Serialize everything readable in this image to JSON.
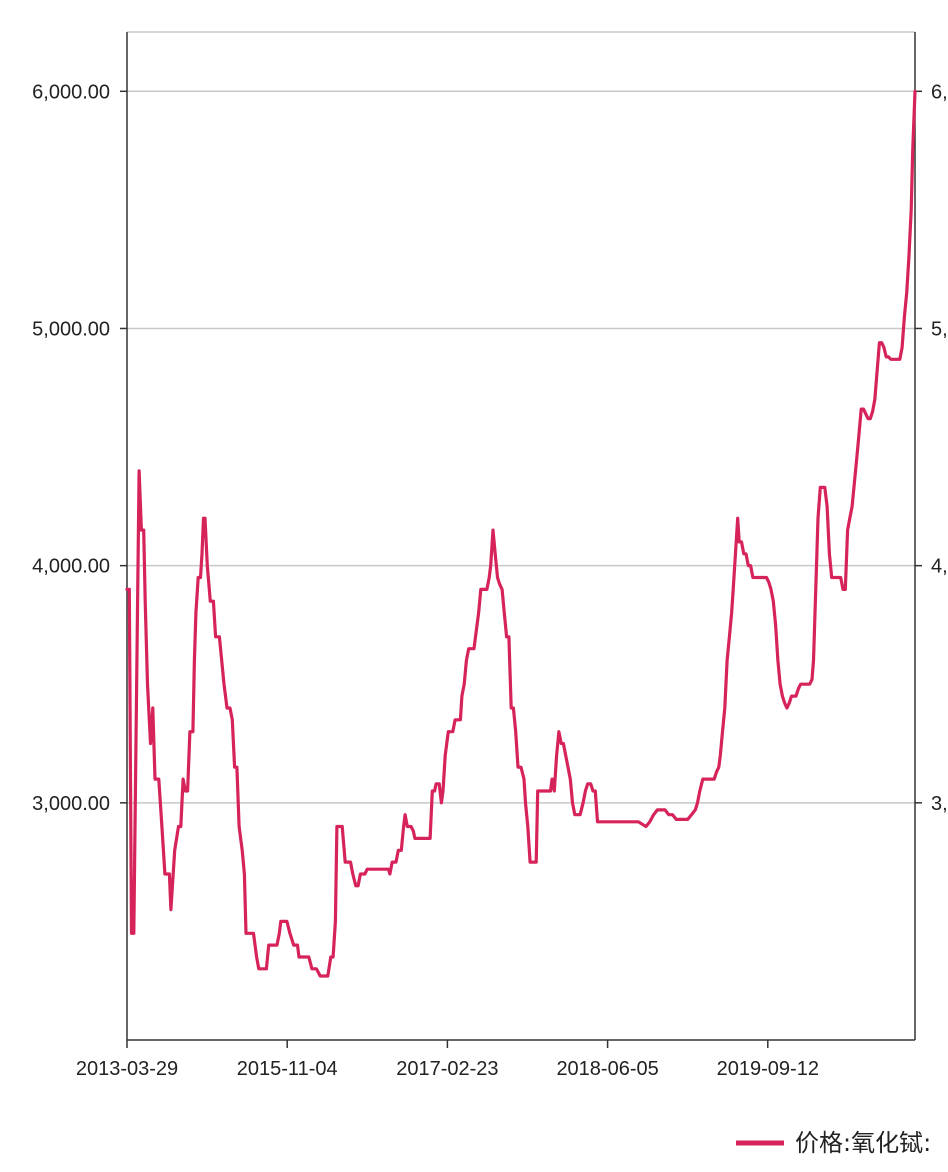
{
  "chart_data": {
    "type": "line",
    "x_ticks": [
      "2013-03-29",
      "2015-11-04",
      "2017-02-23",
      "2018-06-05",
      "2019-09-12"
    ],
    "y_ticks_left": [
      "3,000.00",
      "4,000.00",
      "5,000.00",
      "6,000.00"
    ],
    "y_ticks_right": [
      "3,",
      "4,",
      "5,",
      "6,"
    ],
    "y_tick_values": [
      3000,
      4000,
      5000,
      6000
    ],
    "ylim": [
      2000,
      6250
    ],
    "grid": true,
    "legend_position": "bottom-right",
    "series": [
      {
        "name": "价格:氧化铽:",
        "color": "#d6245a",
        "points": [
          [
            0.0,
            3900
          ],
          [
            0.3,
            3900
          ],
          [
            0.6,
            2450
          ],
          [
            0.9,
            2450
          ],
          [
            1.2,
            3300
          ],
          [
            1.6,
            4400
          ],
          [
            1.9,
            4150
          ],
          [
            2.2,
            4150
          ],
          [
            2.4,
            3850
          ],
          [
            2.7,
            3500
          ],
          [
            3.1,
            3250
          ],
          [
            3.4,
            3400
          ],
          [
            3.7,
            3100
          ],
          [
            4.2,
            3100
          ],
          [
            4.6,
            2900
          ],
          [
            5.0,
            2700
          ],
          [
            5.6,
            2700
          ],
          [
            5.8,
            2550
          ],
          [
            6.3,
            2800
          ],
          [
            6.8,
            2900
          ],
          [
            7.1,
            2900
          ],
          [
            7.4,
            3100
          ],
          [
            7.7,
            3050
          ],
          [
            8.0,
            3050
          ],
          [
            8.3,
            3300
          ],
          [
            8.7,
            3300
          ],
          [
            8.9,
            3600
          ],
          [
            9.1,
            3800
          ],
          [
            9.4,
            3950
          ],
          [
            9.7,
            3950
          ],
          [
            9.9,
            4050
          ],
          [
            10.1,
            4200
          ],
          [
            10.3,
            4200
          ],
          [
            10.6,
            4000
          ],
          [
            11.0,
            3850
          ],
          [
            11.4,
            3850
          ],
          [
            11.7,
            3700
          ],
          [
            12.2,
            3700
          ],
          [
            12.5,
            3600
          ],
          [
            12.8,
            3500
          ],
          [
            13.2,
            3400
          ],
          [
            13.6,
            3400
          ],
          [
            13.9,
            3350
          ],
          [
            14.2,
            3150
          ],
          [
            14.5,
            3150
          ],
          [
            14.8,
            2900
          ],
          [
            15.2,
            2800
          ],
          [
            15.5,
            2700
          ],
          [
            15.7,
            2450
          ],
          [
            16.2,
            2450
          ],
          [
            16.7,
            2450
          ],
          [
            17.1,
            2350
          ],
          [
            17.4,
            2300
          ],
          [
            18.0,
            2300
          ],
          [
            18.4,
            2300
          ],
          [
            18.7,
            2400
          ],
          [
            19.0,
            2400
          ],
          [
            19.4,
            2400
          ],
          [
            19.8,
            2400
          ],
          [
            20.1,
            2450
          ],
          [
            20.3,
            2500
          ],
          [
            21.1,
            2500
          ],
          [
            21.5,
            2450
          ],
          [
            22.0,
            2400
          ],
          [
            22.5,
            2400
          ],
          [
            22.7,
            2350
          ],
          [
            23.5,
            2350
          ],
          [
            24.0,
            2350
          ],
          [
            24.4,
            2300
          ],
          [
            25.0,
            2300
          ],
          [
            25.5,
            2270
          ],
          [
            26.2,
            2270
          ],
          [
            26.5,
            2270
          ],
          [
            26.9,
            2350
          ],
          [
            27.2,
            2350
          ],
          [
            27.5,
            2500
          ],
          [
            27.7,
            2900
          ],
          [
            28.4,
            2900
          ],
          [
            28.8,
            2750
          ],
          [
            29.5,
            2750
          ],
          [
            29.8,
            2700
          ],
          [
            30.2,
            2650
          ],
          [
            30.5,
            2650
          ],
          [
            30.8,
            2700
          ],
          [
            31.4,
            2700
          ],
          [
            31.7,
            2720
          ],
          [
            32.2,
            2720
          ],
          [
            32.7,
            2720
          ],
          [
            33.2,
            2720
          ],
          [
            34.0,
            2720
          ],
          [
            34.3,
            2720
          ],
          [
            34.5,
            2720
          ],
          [
            34.7,
            2700
          ],
          [
            35.0,
            2750
          ],
          [
            35.5,
            2750
          ],
          [
            35.8,
            2800
          ],
          [
            36.2,
            2800
          ],
          [
            36.5,
            2900
          ],
          [
            36.7,
            2950
          ],
          [
            37.0,
            2900
          ],
          [
            37.5,
            2900
          ],
          [
            37.8,
            2880
          ],
          [
            38.0,
            2850
          ],
          [
            38.5,
            2850
          ],
          [
            39.0,
            2850
          ],
          [
            39.5,
            2850
          ],
          [
            40.0,
            2850
          ],
          [
            40.3,
            3050
          ],
          [
            40.6,
            3050
          ],
          [
            40.8,
            3080
          ],
          [
            41.2,
            3080
          ],
          [
            41.5,
            3000
          ],
          [
            41.7,
            3050
          ],
          [
            42.0,
            3200
          ],
          [
            42.4,
            3300
          ],
          [
            42.7,
            3300
          ],
          [
            43.0,
            3300
          ],
          [
            43.3,
            3350
          ],
          [
            44.0,
            3350
          ],
          [
            44.2,
            3450
          ],
          [
            44.5,
            3500
          ],
          [
            44.8,
            3600
          ],
          [
            45.1,
            3650
          ],
          [
            45.8,
            3650
          ],
          [
            46.0,
            3700
          ],
          [
            46.4,
            3800
          ],
          [
            46.7,
            3900
          ],
          [
            47.2,
            3900
          ],
          [
            47.5,
            3900
          ],
          [
            47.8,
            3950
          ],
          [
            48.0,
            4000
          ],
          [
            48.3,
            4150
          ],
          [
            48.6,
            4050
          ],
          [
            48.9,
            3950
          ],
          [
            49.2,
            3920
          ],
          [
            49.5,
            3900
          ],
          [
            49.8,
            3800
          ],
          [
            50.1,
            3700
          ],
          [
            50.4,
            3700
          ],
          [
            50.7,
            3400
          ],
          [
            51.0,
            3400
          ],
          [
            51.3,
            3300
          ],
          [
            51.6,
            3150
          ],
          [
            52.0,
            3150
          ],
          [
            52.4,
            3100
          ],
          [
            52.6,
            3000
          ],
          [
            52.9,
            2900
          ],
          [
            53.2,
            2750
          ],
          [
            53.8,
            2750
          ],
          [
            54.0,
            2750
          ],
          [
            54.2,
            3050
          ],
          [
            54.5,
            3050
          ],
          [
            54.8,
            3050
          ],
          [
            55.3,
            3050
          ],
          [
            55.6,
            3050
          ],
          [
            55.9,
            3050
          ],
          [
            56.1,
            3100
          ],
          [
            56.4,
            3050
          ],
          [
            56.7,
            3200
          ],
          [
            57.0,
            3300
          ],
          [
            57.3,
            3250
          ],
          [
            57.6,
            3250
          ],
          [
            57.9,
            3200
          ],
          [
            58.2,
            3150
          ],
          [
            58.5,
            3100
          ],
          [
            58.8,
            3000
          ],
          [
            59.1,
            2950
          ],
          [
            59.5,
            2950
          ],
          [
            59.8,
            2950
          ],
          [
            60.2,
            3000
          ],
          [
            60.5,
            3050
          ],
          [
            60.8,
            3080
          ],
          [
            61.2,
            3080
          ],
          [
            61.5,
            3050
          ],
          [
            61.8,
            3050
          ],
          [
            62.1,
            2920
          ],
          [
            62.5,
            2920
          ],
          [
            63.0,
            2920
          ],
          [
            63.5,
            2920
          ],
          [
            64.0,
            2920
          ],
          [
            64.5,
            2920
          ],
          [
            65.0,
            2920
          ],
          [
            65.5,
            2920
          ],
          [
            66.0,
            2920
          ],
          [
            66.5,
            2920
          ],
          [
            67.0,
            2920
          ],
          [
            67.5,
            2920
          ],
          [
            68.0,
            2910
          ],
          [
            68.5,
            2900
          ],
          [
            69.0,
            2920
          ],
          [
            69.5,
            2950
          ],
          [
            70.0,
            2970
          ],
          [
            70.5,
            2970
          ],
          [
            71.0,
            2970
          ],
          [
            71.5,
            2950
          ],
          [
            72.0,
            2950
          ],
          [
            72.5,
            2930
          ],
          [
            73.0,
            2930
          ],
          [
            73.5,
            2930
          ],
          [
            74.0,
            2930
          ],
          [
            74.5,
            2950
          ],
          [
            75.0,
            2970
          ],
          [
            75.3,
            3000
          ],
          [
            75.6,
            3050
          ],
          [
            76.0,
            3100
          ],
          [
            76.5,
            3100
          ],
          [
            77.0,
            3100
          ],
          [
            77.5,
            3100
          ],
          [
            77.8,
            3130
          ],
          [
            78.1,
            3150
          ],
          [
            78.3,
            3200
          ],
          [
            78.6,
            3300
          ],
          [
            78.9,
            3400
          ],
          [
            79.2,
            3600
          ],
          [
            79.5,
            3700
          ],
          [
            79.8,
            3800
          ],
          [
            80.0,
            3900
          ],
          [
            80.2,
            4000
          ],
          [
            80.4,
            4100
          ],
          [
            80.6,
            4200
          ],
          [
            80.8,
            4100
          ],
          [
            81.1,
            4100
          ],
          [
            81.4,
            4050
          ],
          [
            81.7,
            4050
          ],
          [
            82.0,
            4000
          ],
          [
            82.3,
            4000
          ],
          [
            82.6,
            3950
          ],
          [
            82.9,
            3950
          ],
          [
            83.2,
            3950
          ],
          [
            83.5,
            3950
          ],
          [
            83.8,
            3950
          ],
          [
            84.1,
            3950
          ],
          [
            84.4,
            3950
          ],
          [
            84.7,
            3930
          ],
          [
            85.0,
            3900
          ],
          [
            85.3,
            3850
          ],
          [
            85.6,
            3750
          ],
          [
            85.9,
            3600
          ],
          [
            86.2,
            3500
          ],
          [
            86.5,
            3450
          ],
          [
            86.8,
            3420
          ],
          [
            87.1,
            3400
          ],
          [
            87.4,
            3420
          ],
          [
            87.7,
            3450
          ],
          [
            88.0,
            3450
          ],
          [
            88.3,
            3450
          ],
          [
            88.6,
            3480
          ],
          [
            88.9,
            3500
          ],
          [
            89.2,
            3500
          ],
          [
            89.5,
            3500
          ],
          [
            89.8,
            3500
          ],
          [
            90.1,
            3500
          ],
          [
            90.4,
            3520
          ],
          [
            90.6,
            3600
          ],
          [
            90.8,
            3800
          ],
          [
            91.0,
            4000
          ],
          [
            91.2,
            4200
          ],
          [
            91.5,
            4330
          ],
          [
            91.8,
            4330
          ],
          [
            92.1,
            4330
          ],
          [
            92.4,
            4250
          ],
          [
            92.7,
            4050
          ],
          [
            93.0,
            3950
          ],
          [
            93.3,
            3950
          ],
          [
            93.6,
            3950
          ],
          [
            93.9,
            3950
          ],
          [
            94.2,
            3950
          ],
          [
            94.5,
            3900
          ],
          [
            94.8,
            3900
          ],
          [
            95.1,
            4150
          ],
          [
            95.4,
            4200
          ],
          [
            95.7,
            4250
          ],
          [
            96.0,
            4350
          ],
          [
            96.3,
            4450
          ],
          [
            96.6,
            4550
          ],
          [
            96.9,
            4660
          ],
          [
            97.2,
            4660
          ],
          [
            97.5,
            4640
          ],
          [
            97.8,
            4620
          ],
          [
            98.1,
            4620
          ],
          [
            98.4,
            4650
          ],
          [
            98.7,
            4700
          ],
          [
            99.0,
            4820
          ],
          [
            99.3,
            4940
          ],
          [
            99.6,
            4940
          ],
          [
            99.9,
            4920
          ],
          [
            100.2,
            4880
          ],
          [
            100.5,
            4880
          ],
          [
            100.8,
            4870
          ],
          [
            101.1,
            4870
          ],
          [
            101.4,
            4870
          ],
          [
            101.7,
            4870
          ],
          [
            102.0,
            4870
          ],
          [
            102.3,
            4920
          ],
          [
            102.6,
            5050
          ],
          [
            102.9,
            5150
          ],
          [
            103.2,
            5300
          ],
          [
            103.5,
            5500
          ],
          [
            103.7,
            5750
          ],
          [
            104.0,
            6000
          ]
        ]
      }
    ]
  }
}
